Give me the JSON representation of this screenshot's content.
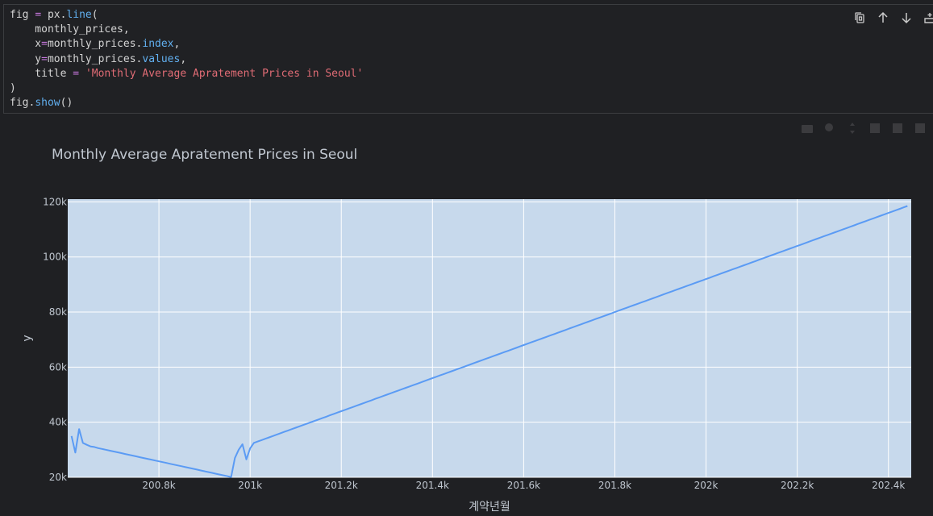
{
  "code": {
    "lines": [
      [
        {
          "t": "fig "
        },
        {
          "t": "=",
          "c": "op"
        },
        {
          "t": " px."
        },
        {
          "t": "line",
          "c": "fn"
        },
        {
          "t": "("
        }
      ],
      [
        {
          "t": "    monthly_prices,"
        }
      ],
      [
        {
          "t": "    x"
        },
        {
          "t": "=",
          "c": "op"
        },
        {
          "t": "monthly_prices."
        },
        {
          "t": "index",
          "c": "fn"
        },
        {
          "t": ","
        }
      ],
      [
        {
          "t": "    y"
        },
        {
          "t": "=",
          "c": "op"
        },
        {
          "t": "monthly_prices."
        },
        {
          "t": "values",
          "c": "fn"
        },
        {
          "t": ","
        }
      ],
      [
        {
          "t": "    title "
        },
        {
          "t": "=",
          "c": "op"
        },
        {
          "t": " "
        },
        {
          "t": "'Monthly Average Apratement Prices in Seoul'",
          "c": "str"
        }
      ],
      [
        {
          "t": ")"
        }
      ],
      [
        {
          "t": "fig."
        },
        {
          "t": "show",
          "c": "fn"
        },
        {
          "t": "()"
        }
      ]
    ]
  },
  "toolbar": {
    "icons": [
      "copy-icon",
      "arrow-up-icon",
      "arrow-down-icon",
      "insert-below-icon"
    ]
  },
  "chart_data": {
    "type": "line",
    "title": "Monthly Average Apratement Prices in Seoul",
    "xlabel": "계약년월",
    "ylabel": "y",
    "xlim": [
      200600,
      202406
    ],
    "ylim": [
      20000,
      121000
    ],
    "xticks": [
      200800,
      201000,
      201200,
      201400,
      201600,
      201800,
      202000,
      202200,
      202400
    ],
    "xtick_labels": [
      "200.8k",
      "201k",
      "201.2k",
      "201.4k",
      "201.6k",
      "201.8k",
      "202k",
      "202.2k",
      "202.4k"
    ],
    "yticks": [
      20000,
      40000,
      60000,
      80000,
      100000,
      120000
    ],
    "ytick_labels": [
      "20k",
      "40k",
      "60k",
      "80k",
      "100k",
      "120k"
    ],
    "line_color": "#5b9bf4",
    "plot_bg": "#c7d9ec",
    "grid": true,
    "series": [
      {
        "x": [
          200601,
          200602,
          200603,
          200604,
          200605,
          200606,
          200607,
          200608,
          200609,
          200610,
          200611,
          200612,
          200701,
          200702,
          200703,
          200704,
          200705,
          200706,
          200707,
          200708,
          200709,
          200710,
          200711,
          200712,
          200801,
          200802,
          200803,
          200804,
          200805,
          200806,
          200807,
          200808,
          200809,
          200810,
          200811,
          200812,
          200901,
          200902,
          200903,
          200904,
          200905,
          200906,
          200907,
          200908,
          200909,
          200910,
          200911,
          200912,
          201001,
          201002,
          201003,
          201004,
          201005,
          201006,
          201007,
          201008,
          201009,
          201010,
          201011,
          201012,
          201101,
          201102,
          201103,
          201104,
          201105,
          201106,
          201107,
          201108,
          201109,
          201110,
          201111,
          201112,
          201201,
          201202,
          201203,
          201204,
          201205,
          201206,
          201207,
          201208,
          201209,
          201210,
          201211,
          201212,
          201301,
          201302,
          201303,
          201304,
          201305,
          201306,
          201307,
          201308,
          201309,
          201310,
          201311,
          201312,
          201401,
          201402,
          201403,
          201404,
          201405,
          201406,
          201407,
          201408,
          201409,
          201410,
          201411,
          201412,
          201501,
          201502,
          201503,
          201504,
          201505,
          201506,
          201507,
          201508,
          201509,
          201510,
          201511,
          201512,
          201601,
          201602,
          201603,
          201604,
          201605,
          201606,
          201607,
          201608,
          201609,
          201610,
          201611,
          201612,
          201701,
          201702,
          201703,
          201704,
          201705,
          201706,
          201707,
          201708,
          201709,
          201710,
          201711,
          201712,
          201801,
          201802,
          201803,
          201804,
          201805,
          201806,
          201807,
          201808,
          201809,
          201810,
          201811,
          201812,
          201901,
          201902,
          201903,
          201904,
          201905,
          201906,
          201907,
          201908,
          201909,
          201910,
          201911,
          201912,
          202001,
          202002,
          202003,
          202004,
          202005,
          202006,
          202007,
          202008,
          202009,
          202010,
          202011,
          202012,
          202101,
          202102,
          202103,
          202104,
          202105,
          202106,
          202107,
          202108,
          202109,
          202110,
          202111,
          202112,
          202201,
          202202,
          202203,
          202204,
          202205,
          202206,
          202207,
          202208,
          202209,
          202210,
          202211,
          202212,
          202301,
          202302,
          202303,
          202304,
          202305,
          202306,
          202307,
          202308,
          202309,
          202310,
          202311,
          202312,
          202401,
          202402,
          202403,
          202404,
          202405
        ],
        "y": [
          35000,
          29000,
          37500,
          32500,
          31800,
          31200,
          31000,
          30600,
          30300,
          30000,
          29700,
          29400,
          29100,
          28800,
          28500,
          28200,
          27900,
          27600,
          27300,
          27000,
          26700,
          26400,
          26100,
          25800,
          25500,
          25200,
          24900,
          24600,
          24300,
          24000,
          23700,
          23400,
          23100,
          22800,
          22500,
          22200,
          21900,
          21600,
          21300,
          21000,
          20700,
          20400,
          20100,
          27000,
          30000,
          32000,
          26500,
          30500,
          32500,
          33000,
          33500,
          34000,
          34500,
          35000,
          35500,
          36000,
          36500,
          37000,
          37500,
          38000,
          38500,
          39000,
          39500,
          40000,
          40500,
          41000,
          41500,
          42000,
          42500,
          43000,
          43500,
          44000,
          44500,
          45000,
          45500,
          46000,
          46500,
          47000,
          47500,
          48000,
          48500,
          49000,
          49500,
          50000,
          50500,
          51000,
          51500,
          52000,
          52500,
          53000,
          53500,
          54000,
          54500,
          55000,
          55500,
          56000,
          56500,
          57000,
          57500,
          58000,
          58500,
          59000,
          59500,
          60000,
          60500,
          61000,
          61500,
          62000,
          62500,
          63000,
          63500,
          64000,
          64500,
          65000,
          65500,
          66000,
          66500,
          67000,
          67500,
          68000,
          68500,
          69000,
          69500,
          70000,
          70500,
          71000,
          71500,
          72000,
          72500,
          73000,
          73500,
          74000,
          74500,
          75000,
          75500,
          76000,
          76500,
          77000,
          77500,
          78000,
          78500,
          79000,
          79500,
          80000,
          80500,
          81000,
          81500,
          82000,
          82500,
          83000,
          83500,
          84000,
          84500,
          85000,
          85500,
          86000,
          86500,
          87000,
          87500,
          88000,
          88500,
          89000,
          89500,
          90000,
          90500,
          91000,
          91500,
          92000,
          92500,
          93000,
          93500,
          94000,
          94500,
          95000,
          95500,
          96000,
          96500,
          97000,
          97500,
          98000,
          98500,
          99000,
          99500,
          100000,
          100500,
          101000,
          101500,
          102000,
          102500,
          103000,
          103500,
          104000,
          104500,
          105000,
          105500,
          106000,
          106500,
          107000,
          107500,
          108000,
          108500,
          109000,
          109500,
          110000,
          110500,
          111000,
          111500,
          112000,
          112500,
          113000,
          113500,
          114000,
          114500,
          115000,
          115500,
          116000,
          116500,
          117000,
          117500,
          118000,
          118500
        ]
      }
    ]
  }
}
